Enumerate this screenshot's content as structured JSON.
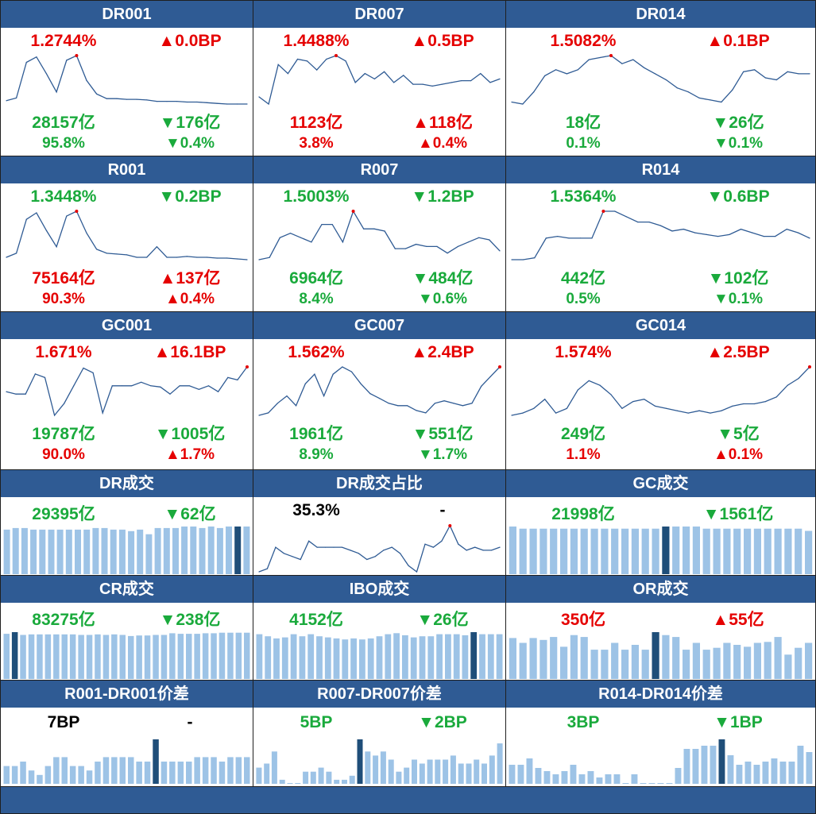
{
  "colors": {
    "header": "#2f5b94",
    "up": "#e50000",
    "down": "#1aaa3c",
    "line": "#2f5b94",
    "bar": "#9dc3e6",
    "bar_highlight": "#1f4e79",
    "peak_dot": "#e50000"
  },
  "line_panels": [
    {
      "title": "DR001",
      "rate": "1.2744%",
      "rate_color": "red",
      "rate_change": "▲0.0BP",
      "rate_change_color": "red",
      "volume": "28157亿",
      "volume_color": "green",
      "volume_change": "▼176亿",
      "volume_change_color": "green",
      "share": "95.8%",
      "share_color": "green",
      "share_change": "▼0.4%",
      "share_change_color": "green",
      "chart_data": {
        "type": "line",
        "values": [
          1.05,
          1.09,
          1.62,
          1.7,
          1.45,
          1.18,
          1.65,
          1.72,
          1.35,
          1.15,
          1.08,
          1.08,
          1.07,
          1.07,
          1.06,
          1.04,
          1.04,
          1.04,
          1.03,
          1.03,
          1.02,
          1.01,
          1.0,
          1.0,
          1.0
        ],
        "peak_index": 7
      }
    },
    {
      "title": "DR007",
      "rate": "1.4488%",
      "rate_color": "red",
      "rate_change": "▲0.5BP",
      "rate_change_color": "red",
      "volume": "1123亿",
      "volume_color": "red",
      "volume_change": "▲118亿",
      "volume_change_color": "red",
      "share": "3.8%",
      "share_color": "red",
      "share_change": "▲0.4%",
      "share_change_color": "red",
      "chart_data": {
        "type": "line",
        "values": [
          1.22,
          1.18,
          1.4,
          1.35,
          1.43,
          1.42,
          1.37,
          1.43,
          1.45,
          1.42,
          1.3,
          1.35,
          1.32,
          1.36,
          1.3,
          1.34,
          1.29,
          1.29,
          1.28,
          1.29,
          1.3,
          1.31,
          1.31,
          1.35,
          1.3,
          1.32
        ],
        "peak_index": 8
      }
    },
    {
      "title": "DR014",
      "rate": "1.5082%",
      "rate_color": "red",
      "rate_change": "▲0.1BP",
      "rate_change_color": "red",
      "volume": "18亿",
      "volume_color": "green",
      "volume_change": "▼26亿",
      "volume_change_color": "green",
      "share": "0.1%",
      "share_color": "green",
      "share_change": "▼0.1%",
      "share_change_color": "green",
      "chart_data": {
        "type": "line",
        "values": [
          1.28,
          1.27,
          1.33,
          1.41,
          1.44,
          1.42,
          1.44,
          1.49,
          1.5,
          1.51,
          1.47,
          1.49,
          1.45,
          1.42,
          1.39,
          1.35,
          1.33,
          1.3,
          1.29,
          1.28,
          1.34,
          1.43,
          1.44,
          1.4,
          1.39,
          1.43,
          1.42,
          1.42
        ],
        "peak_index": 9
      }
    },
    {
      "title": "R001",
      "rate": "1.3448%",
      "rate_color": "green",
      "rate_change": "▼0.2BP",
      "rate_change_color": "green",
      "volume": "75164亿",
      "volume_color": "red",
      "volume_change": "▲137亿",
      "volume_change_color": "red",
      "share": "90.3%",
      "share_color": "red",
      "share_change": "▲0.4%",
      "share_change_color": "red",
      "chart_data": {
        "type": "line",
        "values": [
          1.15,
          1.2,
          1.62,
          1.7,
          1.48,
          1.28,
          1.66,
          1.72,
          1.45,
          1.25,
          1.2,
          1.19,
          1.18,
          1.15,
          1.15,
          1.28,
          1.15,
          1.15,
          1.16,
          1.15,
          1.15,
          1.14,
          1.14,
          1.13,
          1.12
        ],
        "peak_index": 7
      }
    },
    {
      "title": "R007",
      "rate": "1.5003%",
      "rate_color": "green",
      "rate_change": "▼1.2BP",
      "rate_change_color": "green",
      "volume": "6964亿",
      "volume_color": "green",
      "volume_change": "▼484亿",
      "volume_change_color": "green",
      "share": "8.4%",
      "share_color": "green",
      "share_change": "▼0.6%",
      "share_change_color": "green",
      "chart_data": {
        "type": "line",
        "values": [
          1.3,
          1.31,
          1.4,
          1.42,
          1.4,
          1.38,
          1.46,
          1.46,
          1.38,
          1.52,
          1.44,
          1.44,
          1.43,
          1.35,
          1.35,
          1.37,
          1.36,
          1.36,
          1.33,
          1.36,
          1.38,
          1.4,
          1.39,
          1.34
        ],
        "peak_index": 9
      }
    },
    {
      "title": "R014",
      "rate": "1.5364%",
      "rate_color": "green",
      "rate_change": "▼0.6BP",
      "rate_change_color": "green",
      "volume": "442亿",
      "volume_color": "green",
      "volume_change": "▼102亿",
      "volume_change_color": "green",
      "share": "0.5%",
      "share_color": "green",
      "share_change": "▼0.1%",
      "share_change_color": "green",
      "chart_data": {
        "type": "line",
        "values": [
          1.33,
          1.33,
          1.34,
          1.45,
          1.46,
          1.45,
          1.45,
          1.45,
          1.6,
          1.6,
          1.57,
          1.54,
          1.54,
          1.52,
          1.49,
          1.5,
          1.48,
          1.47,
          1.46,
          1.47,
          1.5,
          1.48,
          1.46,
          1.46,
          1.5,
          1.48,
          1.45
        ],
        "peak_index": 8
      }
    },
    {
      "title": "GC001",
      "rate": "1.671%",
      "rate_color": "red",
      "rate_change": "▲16.1BP",
      "rate_change_color": "red",
      "volume": "19787亿",
      "volume_color": "green",
      "volume_change": "▼1005亿",
      "volume_change_color": "green",
      "share": "90.0%",
      "share_color": "red",
      "share_change": "▲1.7%",
      "share_change_color": "red",
      "chart_data": {
        "type": "line",
        "values": [
          1.5,
          1.48,
          1.48,
          1.65,
          1.62,
          1.3,
          1.4,
          1.55,
          1.7,
          1.66,
          1.32,
          1.55,
          1.55,
          1.55,
          1.58,
          1.55,
          1.54,
          1.48,
          1.55,
          1.55,
          1.52,
          1.55,
          1.5,
          1.62,
          1.6,
          1.71
        ],
        "peak_index": 25
      }
    },
    {
      "title": "GC007",
      "rate": "1.562%",
      "rate_color": "red",
      "rate_change": "▲2.4BP",
      "rate_change_color": "red",
      "volume": "1961亿",
      "volume_color": "green",
      "volume_change": "▼551亿",
      "volume_change_color": "green",
      "share": "8.9%",
      "share_color": "green",
      "share_change": "▼1.7%",
      "share_change_color": "green",
      "chart_data": {
        "type": "line",
        "values": [
          1.4,
          1.41,
          1.45,
          1.48,
          1.44,
          1.53,
          1.57,
          1.48,
          1.57,
          1.6,
          1.58,
          1.53,
          1.49,
          1.47,
          1.45,
          1.44,
          1.44,
          1.42,
          1.41,
          1.45,
          1.46,
          1.45,
          1.44,
          1.45,
          1.52,
          1.56,
          1.6
        ],
        "peak_index": 26
      }
    },
    {
      "title": "GC014",
      "rate": "1.574%",
      "rate_color": "red",
      "rate_change": "▲2.5BP",
      "rate_change_color": "red",
      "volume": "249亿",
      "volume_color": "green",
      "volume_change": "▼5亿",
      "volume_change_color": "green",
      "share": "1.1%",
      "share_color": "red",
      "share_change": "▲0.1%",
      "share_change_color": "red",
      "chart_data": {
        "type": "line",
        "values": [
          1.39,
          1.4,
          1.42,
          1.46,
          1.4,
          1.42,
          1.5,
          1.54,
          1.52,
          1.48,
          1.42,
          1.45,
          1.46,
          1.43,
          1.42,
          1.41,
          1.4,
          1.41,
          1.4,
          1.41,
          1.43,
          1.44,
          1.44,
          1.45,
          1.47,
          1.52,
          1.55,
          1.6
        ],
        "peak_index": 27
      }
    }
  ],
  "volume_panels": [
    {
      "title": "DR成交",
      "value": "29395亿",
      "value_color": "green",
      "change": "▼62亿",
      "change_color": "green",
      "chart_data": {
        "type": "bar",
        "values": [
          29,
          30,
          30,
          29,
          29,
          29,
          29,
          29,
          29,
          29,
          30,
          30,
          29,
          29,
          28,
          29,
          26,
          30,
          30,
          30,
          31,
          31,
          30,
          31,
          30,
          31,
          31,
          31
        ],
        "highlight_index": 26
      }
    },
    {
      "title": "DR成交占比",
      "value": "35.3%",
      "value_color": "black",
      "change": "-",
      "change_color": "black",
      "chart_data": {
        "type": "line",
        "values": [
          30,
          31,
          38,
          36,
          35,
          34,
          40,
          38,
          38,
          38,
          38,
          37,
          36,
          34,
          35,
          37,
          38,
          36,
          32,
          30,
          39,
          38,
          40,
          45,
          39,
          37,
          38,
          37,
          37,
          38
        ],
        "peak_index": 23
      }
    },
    {
      "title": "GC成交",
      "value": "21998亿",
      "value_color": "green",
      "change": "▼1561亿",
      "change_color": "green",
      "chart_data": {
        "type": "bar",
        "values": [
          22,
          21,
          21,
          21,
          21,
          21,
          21,
          21,
          21,
          21,
          21,
          21,
          21,
          21,
          21,
          22,
          22,
          22,
          22,
          21,
          21,
          21,
          21,
          21,
          21,
          21,
          21,
          21,
          21,
          20
        ],
        "highlight_index": 15
      }
    },
    {
      "title": "CR成交",
      "value": "83275亿",
      "value_color": "green",
      "change": "▼238亿",
      "change_color": "green",
      "chart_data": {
        "type": "bar",
        "values": [
          82,
          85,
          80,
          81,
          81,
          81,
          81,
          81,
          81,
          80,
          80,
          81,
          80,
          81,
          80,
          78,
          79,
          79,
          80,
          80,
          83,
          82,
          82,
          82,
          83,
          83,
          84,
          84,
          84,
          84
        ],
        "highlight_index": 1
      }
    },
    {
      "title": "IBO成交",
      "value": "4152亿",
      "value_color": "green",
      "change": "▼26亿",
      "change_color": "green",
      "chart_data": {
        "type": "bar",
        "values": [
          4.3,
          4.1,
          3.9,
          4.0,
          4.3,
          4.1,
          4.3,
          4.1,
          4.0,
          3.9,
          3.8,
          3.9,
          3.8,
          3.9,
          4.1,
          4.3,
          4.4,
          4.2,
          4.0,
          4.1,
          4.1,
          4.3,
          4.3,
          4.3,
          4.2,
          4.5,
          4.3,
          4.3,
          4.3
        ],
        "highlight_index": 25
      }
    },
    {
      "title": "OR成交",
      "value": "350亿",
      "value_color": "red",
      "change": "▲55亿",
      "change_color": "red",
      "chart_data": {
        "type": "bar",
        "values": [
          420,
          370,
          420,
          400,
          430,
          330,
          450,
          430,
          300,
          300,
          370,
          300,
          350,
          300,
          480,
          450,
          430,
          300,
          370,
          300,
          320,
          370,
          350,
          330,
          370,
          380,
          430,
          250,
          320,
          370
        ],
        "highlight_index": 14
      }
    }
  ],
  "spread_panels": [
    {
      "title": "R001-DR001价差",
      "value": "7BP",
      "value_color": "black",
      "change": "-",
      "change_color": "black",
      "chart_data": {
        "type": "bar",
        "values": [
          4,
          4,
          5,
          3,
          2,
          4,
          6,
          6,
          4,
          4,
          3,
          5,
          6,
          6,
          6,
          6,
          5,
          5,
          10,
          5,
          5,
          5,
          5,
          6,
          6,
          6,
          5,
          6,
          6,
          6
        ],
        "highlight_index": 18
      }
    },
    {
      "title": "R007-DR007价差",
      "value": "5BP",
      "value_color": "green",
      "change": "▼2BP",
      "change_color": "green",
      "chart_data": {
        "type": "bar",
        "values": [
          4,
          5,
          8,
          1,
          0,
          0,
          3,
          3,
          4,
          3,
          1,
          1,
          2,
          11,
          8,
          7,
          8,
          6,
          3,
          4,
          6,
          5,
          6,
          6,
          6,
          7,
          5,
          5,
          6,
          5,
          7,
          10
        ],
        "highlight_index": 13
      }
    },
    {
      "title": "R014-DR014价差",
      "value": "3BP",
      "value_color": "green",
      "change": "▼1BP",
      "change_color": "green",
      "chart_data": {
        "type": "bar",
        "values": [
          6,
          6,
          8,
          5,
          4,
          3,
          4,
          6,
          3,
          4,
          2,
          3,
          3,
          0,
          3,
          0,
          0,
          0,
          0,
          5,
          11,
          11,
          12,
          12,
          14,
          9,
          6,
          7,
          6,
          7,
          8,
          7,
          7,
          12,
          10
        ],
        "highlight_index": 24
      }
    }
  ]
}
